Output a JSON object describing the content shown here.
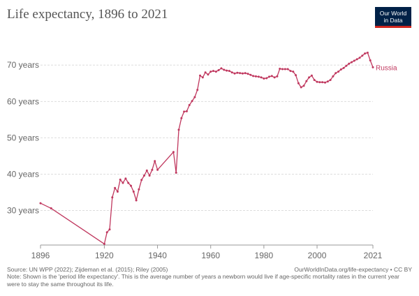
{
  "header": {
    "title": "Life expectancy, 1896 to 2021",
    "logo_line1": "Our World",
    "logo_line2": "in Data"
  },
  "chart_data": {
    "type": "line",
    "title": "Life expectancy, 1896 to 2021",
    "xlabel": "",
    "ylabel": "",
    "xlim": [
      1896,
      2021
    ],
    "ylim": [
      20.5,
      76
    ],
    "x_ticks": [
      1896,
      1920,
      1940,
      1960,
      1980,
      2000,
      2021
    ],
    "y_ticks": [
      30,
      40,
      50,
      60,
      70
    ],
    "y_tick_labels": [
      "30 years",
      "40 years",
      "50 years",
      "60 years",
      "70 years"
    ],
    "grid": true,
    "color": "#b13507",
    "series": [
      {
        "name": "Russia",
        "x": [
          1896,
          1900,
          1920,
          1921,
          1922,
          1923,
          1924,
          1925,
          1926,
          1927,
          1928,
          1929,
          1930,
          1931,
          1932,
          1933,
          1934,
          1935,
          1936,
          1937,
          1938,
          1939,
          1940,
          1946,
          1947,
          1948,
          1949,
          1950,
          1951,
          1952,
          1953,
          1954,
          1955,
          1956,
          1957,
          1958,
          1959,
          1960,
          1961,
          1962,
          1963,
          1964,
          1965,
          1966,
          1967,
          1968,
          1969,
          1970,
          1971,
          1972,
          1973,
          1974,
          1975,
          1976,
          1977,
          1978,
          1979,
          1980,
          1981,
          1982,
          1983,
          1984,
          1985,
          1986,
          1987,
          1988,
          1989,
          1990,
          1991,
          1992,
          1993,
          1994,
          1995,
          1996,
          1997,
          1998,
          1999,
          2000,
          2001,
          2002,
          2003,
          2004,
          2005,
          2006,
          2007,
          2008,
          2009,
          2010,
          2011,
          2012,
          2013,
          2014,
          2015,
          2016,
          2017,
          2018,
          2019,
          2020,
          2021
        ],
        "values": [
          32.0,
          30.6,
          20.8,
          24.0,
          24.8,
          33.6,
          36.2,
          35.2,
          38.5,
          37.6,
          38.8,
          37.6,
          36.8,
          35.2,
          32.8,
          35.8,
          38.4,
          39.6,
          41.0,
          39.6,
          41.2,
          43.6,
          41.2,
          46.1,
          40.4,
          52.2,
          55.4,
          57.2,
          57.3,
          59.0,
          60.1,
          61.2,
          63.2,
          67.1,
          66.6,
          68.0,
          67.4,
          68.2,
          68.4,
          68.2,
          68.6,
          69.1,
          68.7,
          68.5,
          68.4,
          68.0,
          67.7,
          67.9,
          67.8,
          67.7,
          67.8,
          67.6,
          67.3,
          67.0,
          66.9,
          66.8,
          66.6,
          66.3,
          66.4,
          66.8,
          67.0,
          66.6,
          66.9,
          69.0,
          68.9,
          68.9,
          68.9,
          68.4,
          68.2,
          67.2,
          65.0,
          63.9,
          64.3,
          65.6,
          66.6,
          67.1,
          65.9,
          65.4,
          65.3,
          65.3,
          65.2,
          65.5,
          65.9,
          66.9,
          67.8,
          68.2,
          68.8,
          69.2,
          69.8,
          70.4,
          70.8,
          71.2,
          71.6,
          72.0,
          72.6,
          73.2,
          73.4,
          71.3,
          69.4
        ],
        "label": "Russia"
      }
    ]
  },
  "footer": {
    "source": "Source: UN WPP (2022); Zijdeman et al. (2015); Riley (2005)",
    "url": "OurWorldInData.org/life-expectancy • CC BY",
    "note": "Note: Shown is the 'period life expectancy'. This is the average number of years a newborn would live if age-specific mortality rates in the current year were to stay the same throughout its life."
  }
}
